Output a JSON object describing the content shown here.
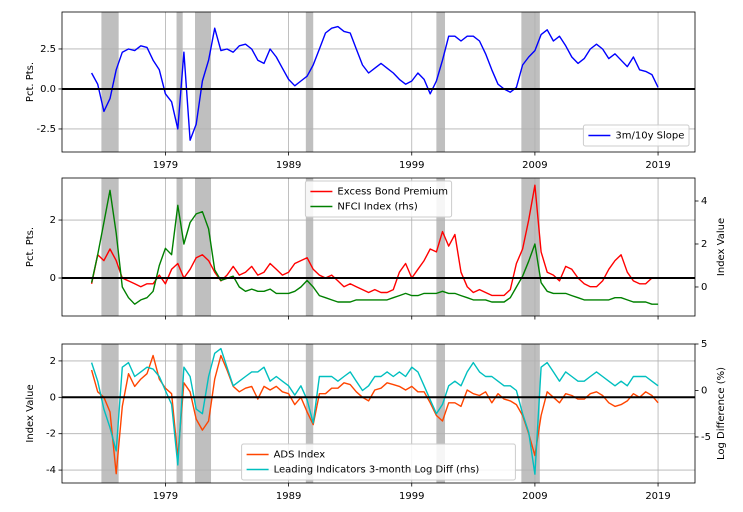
{
  "chart_data": [
    {
      "type": "line",
      "x": [
        1973,
        1973.5,
        1974,
        1974.5,
        1975,
        1975.5,
        1976,
        1976.5,
        1977,
        1977.5,
        1978,
        1978.5,
        1979,
        1979.5,
        1980,
        1980.5,
        1981,
        1981.5,
        1982,
        1982.5,
        1983,
        1983.5,
        1984,
        1984.5,
        1985,
        1985.5,
        1986,
        1986.5,
        1987,
        1987.5,
        1988,
        1988.5,
        1989,
        1989.5,
        1990,
        1990.5,
        1991,
        1991.5,
        1992,
        1992.5,
        1993,
        1993.5,
        1994,
        1994.5,
        1995,
        1995.5,
        1996,
        1996.5,
        1997,
        1997.5,
        1998,
        1998.5,
        1999,
        1999.5,
        2000,
        2000.5,
        2001,
        2001.5,
        2002,
        2002.5,
        2003,
        2003.5,
        2004,
        2004.5,
        2005,
        2005.5,
        2006,
        2006.5,
        2007,
        2007.5,
        2008,
        2008.5,
        2009,
        2009.5,
        2010,
        2010.5,
        2011,
        2011.5,
        2012,
        2012.5,
        2013,
        2013.5,
        2014,
        2014.5,
        2015,
        2015.5,
        2016,
        2016.5,
        2017,
        2017.5,
        2018,
        2018.5,
        2019
      ],
      "xlim": [
        1970.6,
        2022.0
      ],
      "xticks": [
        1979,
        1989,
        1999,
        2009,
        2019
      ],
      "xtick_labels": true,
      "ylim": [
        -3.94,
        4.81
      ],
      "yticks": [
        -2.5,
        {
          "value": 0,
          "label": "0.0"
        },
        2.5
      ],
      "ylabel": "Pct. Pts.",
      "grid": true,
      "zero_line": 0,
      "legend": "lower right",
      "recessions": [
        [
          1973.8,
          1975.2
        ],
        [
          1979.9,
          1980.4
        ],
        [
          1981.4,
          1982.7
        ],
        [
          1990.4,
          1991.0
        ],
        [
          2001.0,
          2001.7
        ],
        [
          2007.9,
          2009.4
        ]
      ],
      "series": [
        {
          "name": "3m/10y Slope",
          "color": "#0000ff",
          "values": [
            1.0,
            0.3,
            -1.4,
            -0.6,
            1.2,
            2.3,
            2.5,
            2.4,
            2.7,
            2.6,
            1.8,
            1.2,
            -0.3,
            -0.8,
            -2.5,
            2.3,
            -3.2,
            -2.2,
            0.5,
            1.8,
            3.8,
            2.4,
            2.5,
            2.3,
            2.7,
            2.8,
            2.5,
            1.8,
            1.6,
            2.5,
            2.0,
            1.3,
            0.6,
            0.2,
            0.5,
            0.8,
            1.5,
            2.5,
            3.5,
            3.8,
            3.9,
            3.6,
            3.5,
            2.5,
            1.5,
            1.0,
            1.3,
            1.6,
            1.3,
            1.0,
            0.6,
            0.3,
            0.5,
            1.0,
            0.6,
            -0.3,
            0.5,
            1.8,
            3.3,
            3.3,
            3.0,
            3.3,
            3.3,
            3.0,
            2.2,
            1.2,
            0.3,
            0.0,
            -0.2,
            0.1,
            1.5,
            2.0,
            2.4,
            3.4,
            3.7,
            3.0,
            3.3,
            2.7,
            2.0,
            1.6,
            1.9,
            2.5,
            2.8,
            2.5,
            1.9,
            2.2,
            1.8,
            1.4,
            2.0,
            1.2,
            1.1,
            0.9,
            0.1
          ]
        }
      ]
    },
    {
      "type": "line",
      "x": [
        1973,
        1973.5,
        1974,
        1974.5,
        1975,
        1975.5,
        1976,
        1976.5,
        1977,
        1977.5,
        1978,
        1978.5,
        1979,
        1979.5,
        1980,
        1980.5,
        1981,
        1981.5,
        1982,
        1982.5,
        1983,
        1983.5,
        1984,
        1984.5,
        1985,
        1985.5,
        1986,
        1986.5,
        1987,
        1987.5,
        1988,
        1988.5,
        1989,
        1989.5,
        1990,
        1990.5,
        1991,
        1991.5,
        1992,
        1992.5,
        1993,
        1993.5,
        1994,
        1994.5,
        1995,
        1995.5,
        1996,
        1996.5,
        1997,
        1997.5,
        1998,
        1998.5,
        1999,
        1999.5,
        2000,
        2000.5,
        2001,
        2001.5,
        2002,
        2002.5,
        2003,
        2003.5,
        2004,
        2004.5,
        2005,
        2005.5,
        2006,
        2006.5,
        2007,
        2007.5,
        2008,
        2008.5,
        2009,
        2009.5,
        2010,
        2010.5,
        2011,
        2011.5,
        2012,
        2012.5,
        2013,
        2013.5,
        2014,
        2014.5,
        2015,
        2015.5,
        2016,
        2016.5,
        2017,
        2017.5,
        2018,
        2018.5,
        2019
      ],
      "xlim": [
        1970.6,
        2022.0
      ],
      "xticks": [
        1979,
        1989,
        1999,
        2009,
        2019
      ],
      "xtick_labels": false,
      "ylim": [
        -1.31,
        3.45
      ],
      "yticks": [
        0,
        2
      ],
      "ylabel": "Pct. Pts.",
      "y2lim": [
        -1.35,
        5.07
      ],
      "y2ticks": [
        0,
        2,
        4
      ],
      "y2label": "Index Value",
      "grid": true,
      "zero_line": 0,
      "legend": "upper center",
      "recessions": [
        [
          1973.8,
          1975.2
        ],
        [
          1979.9,
          1980.4
        ],
        [
          1981.4,
          1982.7
        ],
        [
          1990.4,
          1991.0
        ],
        [
          2001.0,
          2001.7
        ],
        [
          2007.9,
          2009.4
        ]
      ],
      "series": [
        {
          "name": "Excess Bond Premium",
          "color": "#ff0000",
          "values": [
            -0.2,
            0.8,
            0.6,
            1.0,
            0.6,
            0.0,
            -0.1,
            -0.2,
            -0.3,
            -0.2,
            -0.2,
            0.1,
            -0.2,
            0.3,
            0.5,
            0.0,
            0.3,
            0.7,
            0.8,
            0.6,
            0.2,
            -0.1,
            0.1,
            0.4,
            0.1,
            0.2,
            0.4,
            0.1,
            0.2,
            0.5,
            0.3,
            0.1,
            0.2,
            0.5,
            0.6,
            0.7,
            0.3,
            0.1,
            0.0,
            0.1,
            -0.1,
            -0.3,
            -0.2,
            -0.3,
            -0.4,
            -0.5,
            -0.4,
            -0.5,
            -0.5,
            -0.4,
            0.2,
            0.5,
            0.0,
            0.3,
            0.6,
            1.0,
            0.9,
            1.6,
            1.1,
            1.5,
            0.2,
            -0.3,
            -0.5,
            -0.4,
            -0.5,
            -0.6,
            -0.6,
            -0.6,
            -0.4,
            0.5,
            1.0,
            2.0,
            3.2,
            0.9,
            0.2,
            0.1,
            -0.1,
            0.4,
            0.3,
            0.0,
            -0.2,
            -0.3,
            -0.3,
            -0.1,
            0.3,
            0.6,
            0.8,
            0.2,
            -0.1,
            -0.2,
            -0.2,
            0.0,
            0.0
          ]
        },
        {
          "name": "NFCI Index (rhs)",
          "color": "#008000",
          "axis": "y2",
          "values": [
            0.2,
            1.5,
            3.0,
            4.5,
            2.5,
            0.0,
            -0.5,
            -0.8,
            -0.6,
            -0.5,
            -0.2,
            1.0,
            1.8,
            1.5,
            3.8,
            2.0,
            3.0,
            3.4,
            3.5,
            2.7,
            0.8,
            0.3,
            0.4,
            0.5,
            0.0,
            -0.2,
            -0.1,
            -0.2,
            -0.2,
            -0.1,
            -0.3,
            -0.3,
            -0.3,
            -0.2,
            0.0,
            0.3,
            0.0,
            -0.4,
            -0.5,
            -0.6,
            -0.7,
            -0.7,
            -0.7,
            -0.6,
            -0.6,
            -0.6,
            -0.6,
            -0.6,
            -0.6,
            -0.5,
            -0.4,
            -0.3,
            -0.4,
            -0.4,
            -0.3,
            -0.3,
            -0.3,
            -0.2,
            -0.3,
            -0.3,
            -0.4,
            -0.5,
            -0.6,
            -0.6,
            -0.6,
            -0.7,
            -0.7,
            -0.7,
            -0.5,
            0.0,
            0.5,
            1.2,
            2.0,
            0.2,
            -0.2,
            -0.3,
            -0.3,
            -0.3,
            -0.4,
            -0.5,
            -0.6,
            -0.6,
            -0.6,
            -0.6,
            -0.6,
            -0.5,
            -0.5,
            -0.6,
            -0.7,
            -0.7,
            -0.7,
            -0.8,
            -0.8
          ]
        }
      ]
    },
    {
      "type": "line",
      "x": [
        1973,
        1973.5,
        1974,
        1974.5,
        1975,
        1975.5,
        1976,
        1976.5,
        1977,
        1977.5,
        1978,
        1978.5,
        1979,
        1979.5,
        1980,
        1980.5,
        1981,
        1981.5,
        1982,
        1982.5,
        1983,
        1983.5,
        1984,
        1984.5,
        1985,
        1985.5,
        1986,
        1986.5,
        1987,
        1987.5,
        1988,
        1988.5,
        1989,
        1989.5,
        1990,
        1990.5,
        1991,
        1991.5,
        1992,
        1992.5,
        1993,
        1993.5,
        1994,
        1994.5,
        1995,
        1995.5,
        1996,
        1996.5,
        1997,
        1997.5,
        1998,
        1998.5,
        1999,
        1999.5,
        2000,
        2000.5,
        2001,
        2001.5,
        2002,
        2002.5,
        2003,
        2003.5,
        2004,
        2004.5,
        2005,
        2005.5,
        2006,
        2006.5,
        2007,
        2007.5,
        2008,
        2008.5,
        2009,
        2009.5,
        2010,
        2010.5,
        2011,
        2011.5,
        2012,
        2012.5,
        2013,
        2013.5,
        2014,
        2014.5,
        2015,
        2015.5,
        2016,
        2016.5,
        2017,
        2017.5,
        2018,
        2018.5,
        2019
      ],
      "xlim": [
        1970.6,
        2022.0
      ],
      "xticks": [
        1979,
        1989,
        1999,
        2009,
        2019
      ],
      "xtick_labels": true,
      "ylim": [
        -4.71,
        2.93
      ],
      "yticks": [
        -4,
        -2,
        0,
        2
      ],
      "ylabel": "Index Value",
      "y2lim": [
        -9.95,
        5.0
      ],
      "y2ticks": [
        -5,
        0,
        5
      ],
      "y2label": "Log Difference (%)",
      "grid": true,
      "zero_line": 0,
      "legend": "lower center",
      "recessions": [
        [
          1973.8,
          1975.2
        ],
        [
          1979.9,
          1980.4
        ],
        [
          1981.4,
          1982.7
        ],
        [
          1990.4,
          1991.0
        ],
        [
          2001.0,
          2001.7
        ],
        [
          2007.9,
          2009.4
        ]
      ],
      "series": [
        {
          "name": "ADS Index",
          "color": "#ff4500",
          "values": [
            1.5,
            0.3,
            0.0,
            -0.8,
            -4.2,
            -0.5,
            1.3,
            0.6,
            1.0,
            1.3,
            2.3,
            1.0,
            0.5,
            0.2,
            -3.3,
            0.8,
            0.3,
            -1.2,
            -1.8,
            -1.3,
            1.0,
            2.3,
            1.5,
            0.6,
            0.3,
            0.5,
            0.6,
            -0.1,
            0.6,
            0.4,
            0.6,
            0.3,
            0.2,
            -0.4,
            0.0,
            -0.8,
            -1.5,
            0.2,
            0.2,
            0.5,
            0.5,
            0.8,
            0.7,
            0.3,
            0.0,
            -0.2,
            0.4,
            0.5,
            0.8,
            0.7,
            0.6,
            0.4,
            0.6,
            0.3,
            0.3,
            -0.3,
            -1.0,
            -1.3,
            -0.3,
            -0.3,
            -0.5,
            0.4,
            0.2,
            0.1,
            0.3,
            -0.3,
            0.2,
            -0.1,
            -0.2,
            -0.4,
            -1.0,
            -2.0,
            -3.2,
            -1.0,
            0.3,
            0.0,
            -0.3,
            0.2,
            0.1,
            -0.1,
            -0.1,
            0.2,
            0.3,
            0.1,
            -0.3,
            -0.5,
            -0.4,
            -0.2,
            0.2,
            0.0,
            0.3,
            0.1,
            -0.3
          ]
        },
        {
          "name": "Leading Indicators 3-month Log Diff (rhs)",
          "color": "#00bfbf",
          "axis": "y2",
          "values": [
            3.0,
            1.0,
            -2.0,
            -4.0,
            -6.5,
            2.5,
            3.0,
            1.5,
            2.0,
            2.5,
            2.3,
            1.5,
            0.0,
            -1.5,
            -8.0,
            2.5,
            1.5,
            -2.0,
            -2.5,
            1.5,
            4.0,
            4.5,
            2.5,
            0.5,
            1.0,
            1.5,
            2.0,
            2.0,
            2.5,
            1.0,
            1.5,
            1.0,
            0.5,
            -0.5,
            0.5,
            -1.0,
            -3.5,
            1.5,
            1.5,
            1.5,
            1.0,
            1.5,
            2.0,
            1.0,
            0.0,
            0.5,
            1.5,
            1.5,
            2.0,
            1.5,
            2.0,
            1.5,
            2.5,
            2.0,
            0.5,
            -1.0,
            -2.5,
            -1.5,
            0.5,
            1.0,
            0.5,
            2.0,
            3.0,
            2.0,
            1.5,
            1.5,
            1.0,
            0.5,
            0.5,
            0.0,
            -2.5,
            -4.5,
            -9.0,
            2.5,
            3.0,
            2.0,
            1.0,
            2.0,
            1.5,
            1.0,
            1.0,
            1.5,
            2.0,
            1.5,
            1.0,
            0.5,
            1.0,
            0.5,
            1.5,
            1.5,
            1.5,
            1.0,
            0.5
          ]
        }
      ]
    }
  ]
}
